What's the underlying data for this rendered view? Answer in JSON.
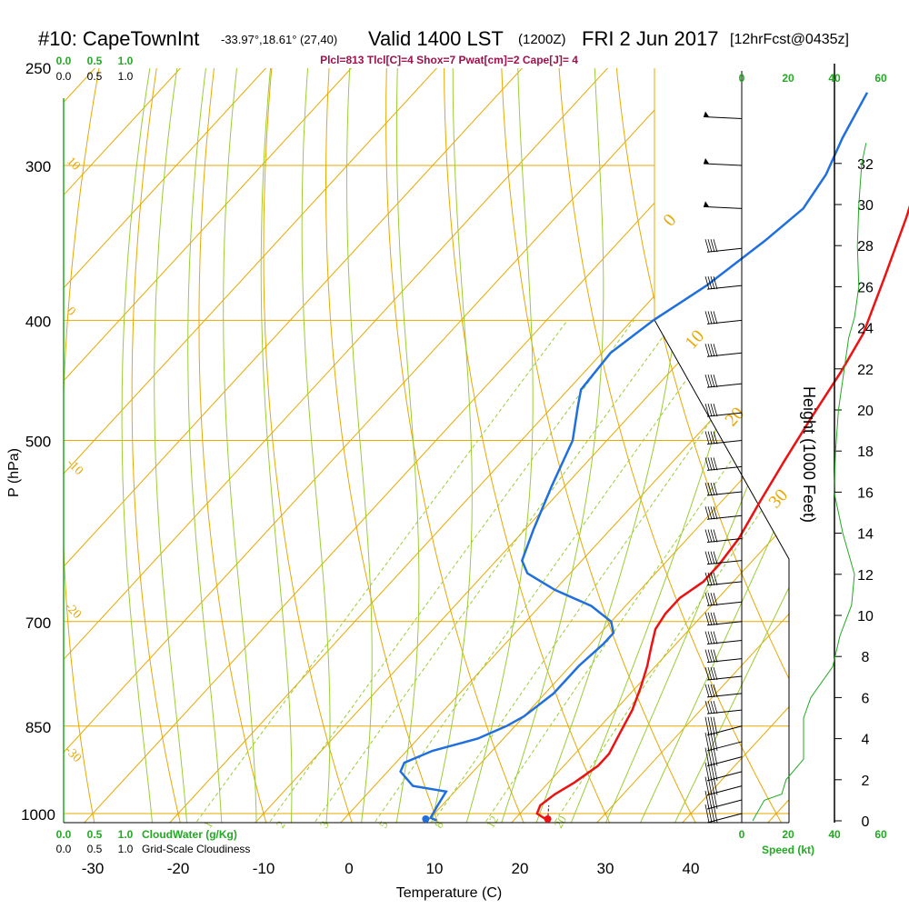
{
  "header": {
    "station": "#10: CapeTownInt",
    "coords": "-33.97°,18.61° (27,40)",
    "valid": "Valid 1400 LST",
    "utc": "(1200Z)",
    "date": "FRI 2 Jun 2017",
    "forecast": "[12hrFcst@0435z]",
    "indices": "Plcl=813 Tlcl[C]=4 Shox=7 Pwat[cm]=2 Cape[J]= 4"
  },
  "colors": {
    "temperature": "#ee1111",
    "dewpoint": "#1f6fe0",
    "isotherm": "#e8a800",
    "dry_adiabat": "#e8a800",
    "moist_adiabat": "#9acd32",
    "mixing_ratio": "#9acd32",
    "height_profile": "#22aa22"
  },
  "chart_data": {
    "type": "line",
    "title": "#10: CapeTownInt Valid 1400 LST (1200Z) FRI 2 Jun 2017",
    "xlabel": "Temperature (C)",
    "ylabel": "P (hPa)",
    "y2label": "Height (1000 Feet)",
    "xlim": [
      -33,
      36
    ],
    "ylim": [
      1000,
      250
    ],
    "x_ticks": [
      "-30",
      "-20",
      "-10",
      "0",
      "10",
      "20",
      "30",
      "40"
    ],
    "y_ticks": [
      "250",
      "300",
      "400",
      "500",
      "700",
      "850",
      "1000"
    ],
    "height_ticks": [
      "0",
      "2",
      "4",
      "6",
      "8",
      "10",
      "12",
      "14",
      "16",
      "18",
      "20",
      "22",
      "24",
      "26",
      "28",
      "30",
      "32"
    ],
    "speed_label": "Speed (kt)",
    "speed_ticks": [
      "0",
      "20",
      "40",
      "60"
    ],
    "top_scale_green": [
      "0.0",
      "0.5",
      "1.0"
    ],
    "top_scale_black": [
      "0.0",
      "0.5",
      "1.0"
    ],
    "bottom_scale_green": [
      "0.0",
      "0.5",
      "1.0"
    ],
    "bottom_scale_black": [
      "0.0",
      "0.5",
      "1.0"
    ],
    "cloudwater_label": "CloudWater (g/Kg)",
    "cloudiness_label": "Grid-Scale Cloudiness",
    "isotherm_labels": [
      "0",
      "10",
      "20",
      "30"
    ],
    "dry_adiabat_labels": [
      "10",
      "0",
      "-10",
      "-20",
      "-30"
    ],
    "mixing_ratio_labels": [
      "1",
      "2",
      "3",
      "5",
      "8",
      "12",
      "20"
    ],
    "series": [
      {
        "name": "Temperature",
        "points": [
          [
            24,
            1013
          ],
          [
            22,
            1000
          ],
          [
            21.5,
            985
          ],
          [
            22,
            965
          ],
          [
            23,
            945
          ],
          [
            24,
            915
          ],
          [
            24,
            895
          ],
          [
            23,
            860
          ],
          [
            22,
            825
          ],
          [
            20.5,
            790
          ],
          [
            19,
            760
          ],
          [
            17.5,
            735
          ],
          [
            16,
            710
          ],
          [
            15.5,
            690
          ],
          [
            15.5,
            670
          ],
          [
            16.5,
            650
          ],
          [
            16.5,
            630
          ],
          [
            16,
            600
          ],
          [
            14.5,
            560
          ],
          [
            13,
            520
          ],
          [
            11.5,
            480
          ],
          [
            10,
            440
          ],
          [
            8.5,
            410
          ],
          [
            5,
            370
          ],
          [
            1,
            330
          ],
          [
            -4,
            290
          ],
          [
            -9,
            258
          ]
        ]
      },
      {
        "name": "Dewpoint",
        "points": [
          [
            11,
            1013
          ],
          [
            10,
            1008
          ],
          [
            9.5,
            985
          ],
          [
            9,
            960
          ],
          [
            4.5,
            950
          ],
          [
            1.5,
            925
          ],
          [
            1,
            910
          ],
          [
            3,
            890
          ],
          [
            7,
            870
          ],
          [
            9,
            850
          ],
          [
            10,
            835
          ],
          [
            11,
            800
          ],
          [
            11,
            760
          ],
          [
            11.5,
            730
          ],
          [
            11.5,
            715
          ],
          [
            10,
            700
          ],
          [
            6,
            680
          ],
          [
            0,
            660
          ],
          [
            -5,
            640
          ],
          [
            -7,
            625
          ],
          [
            -9,
            590
          ],
          [
            -11.5,
            545
          ],
          [
            -14,
            500
          ],
          [
            -17,
            470
          ],
          [
            -18.5,
            455
          ],
          [
            -19,
            425
          ],
          [
            -17.5,
            400
          ],
          [
            -15,
            375
          ],
          [
            -13,
            345
          ],
          [
            -12,
            325
          ],
          [
            -13,
            305
          ],
          [
            -15,
            285
          ],
          [
            -17,
            262
          ]
        ]
      },
      {
        "name": "Height",
        "points": [
          [
            0,
            0
          ],
          [
            0.8,
            1
          ],
          [
            2,
            1.3
          ],
          [
            2.3,
            2
          ],
          [
            3.5,
            3
          ],
          [
            3.5,
            5
          ],
          [
            4,
            6
          ],
          [
            5.5,
            7.5
          ],
          [
            6,
            9
          ],
          [
            6.8,
            10.5
          ],
          [
            7,
            12
          ],
          [
            6.2,
            14
          ],
          [
            5.6,
            16
          ],
          [
            5.7,
            18
          ],
          [
            5.9,
            20
          ],
          [
            6.3,
            22
          ],
          [
            6.6,
            23.5
          ],
          [
            7,
            24.5
          ],
          [
            7.3,
            26
          ],
          [
            7.2,
            28
          ],
          [
            7.3,
            30
          ],
          [
            7.5,
            32
          ],
          [
            7.8,
            33
          ]
        ]
      }
    ],
    "surface_temperature": 24,
    "surface_dewpoint": 11,
    "wind_barb_pressures": [
      1000,
      975,
      950,
      925,
      900,
      875,
      850,
      825,
      800,
      775,
      750,
      725,
      700,
      675,
      650,
      625,
      600,
      575,
      550,
      525,
      500,
      475,
      450,
      425,
      400,
      375,
      350,
      325,
      300,
      275
    ],
    "grid": true
  }
}
